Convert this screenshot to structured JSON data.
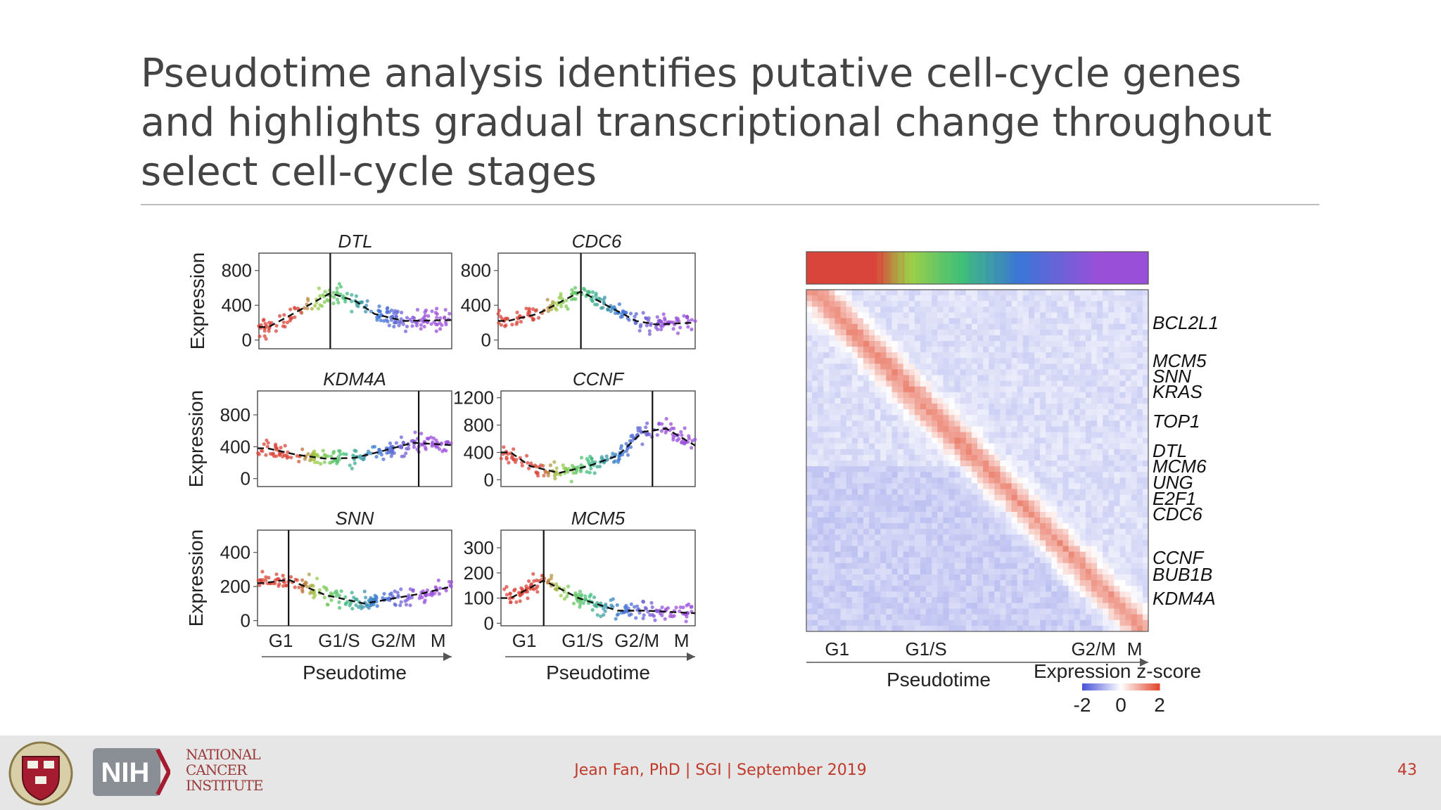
{
  "slide": {
    "title": "Pseudotime analysis identifies putative cell-cycle genes and highlights gradual transcriptional change throughout select cell-cycle stages",
    "footer_credit": "Jean Fan, PhD | SGI | September 2019",
    "page_number": "43",
    "logos": {
      "harvard": "harvard-shield-logo",
      "nih": "NIH",
      "nci": [
        "NATIONAL",
        "CANCER",
        "INSTITUTE"
      ]
    }
  },
  "colors": {
    "G1": "#d9453a",
    "G1/S": "#9ccf48",
    "S": "#3fbf7a",
    "S/G2": "#3b76d6",
    "G2/M": "#9a4fd9",
    "zscore_low": "#4a55d8",
    "zscore_mid": "#ffffff",
    "zscore_high": "#e2492f",
    "footer_text": "#c0392b"
  },
  "chart_data": [
    {
      "type": "scatter",
      "title": "DTL",
      "ylabel": "Expression",
      "yticks": [
        "800",
        "400",
        "0"
      ],
      "ylim": [
        -100,
        1000
      ],
      "xlim": [
        0,
        1
      ],
      "stage_marker": 0.37,
      "trend": {
        "x": [
          0.05,
          0.2,
          0.37,
          0.5,
          0.6,
          0.75,
          1.0
        ],
        "y": [
          150,
          330,
          540,
          450,
          300,
          220,
          230
        ]
      }
    },
    {
      "type": "scatter",
      "title": "CDC6",
      "ylabel": "",
      "yticks": [
        "800",
        "400",
        "0"
      ],
      "ylim": [
        -100,
        1000
      ],
      "xlim": [
        0,
        1
      ],
      "stage_marker": 0.42,
      "trend": {
        "x": [
          0.05,
          0.2,
          0.42,
          0.55,
          0.7,
          0.8,
          1.0
        ],
        "y": [
          220,
          300,
          560,
          400,
          220,
          180,
          200
        ]
      }
    },
    {
      "type": "scatter",
      "title": "KDM4A",
      "ylabel": "Expression",
      "yticks": [
        "800",
        "400",
        "0"
      ],
      "ylim": [
        -100,
        1100
      ],
      "xlim": [
        0,
        1
      ],
      "stage_marker": 0.83,
      "trend": {
        "x": [
          0.05,
          0.2,
          0.35,
          0.5,
          0.65,
          0.8,
          1.0
        ],
        "y": [
          380,
          300,
          250,
          260,
          350,
          450,
          420
        ]
      }
    },
    {
      "type": "scatter",
      "title": "CCNF",
      "ylabel": "",
      "yticks": [
        "1200",
        "800",
        "400",
        "0"
      ],
      "ylim": [
        -100,
        1300
      ],
      "xlim": [
        0,
        1
      ],
      "stage_marker": 0.78,
      "trend": {
        "x": [
          0.05,
          0.15,
          0.3,
          0.45,
          0.6,
          0.73,
          0.85,
          1.0
        ],
        "y": [
          400,
          200,
          100,
          200,
          350,
          700,
          750,
          500
        ]
      }
    },
    {
      "type": "scatter",
      "title": "SNN",
      "ylabel": "Expression",
      "yticks": [
        "400",
        "200",
        "0"
      ],
      "ylim": [
        -30,
        530
      ],
      "xlim": [
        0,
        1
      ],
      "stage_marker": 0.16,
      "trend": {
        "x": [
          0.03,
          0.16,
          0.35,
          0.55,
          0.7,
          0.85,
          1.0
        ],
        "y": [
          220,
          240,
          150,
          100,
          130,
          160,
          200
        ]
      }
    },
    {
      "type": "scatter",
      "title": "MCM5",
      "ylabel": "",
      "yticks": [
        "300",
        "200",
        "100",
        "0"
      ],
      "ylim": [
        -10,
        370
      ],
      "xlim": [
        0,
        1
      ],
      "stage_marker": 0.22,
      "trend": {
        "x": [
          0.05,
          0.22,
          0.4,
          0.6,
          0.75,
          1.0
        ],
        "y": [
          100,
          170,
          100,
          50,
          50,
          40
        ]
      }
    },
    {
      "type": "heatmap",
      "stage_labels": [
        "G1",
        "G1/S",
        "G2/M",
        "M"
      ],
      "gene_labels": [
        "BCL2L1",
        "MCM5",
        "SNN",
        "KRAS",
        "TOP1",
        "DTL",
        "MCM6",
        "UNG",
        "E2F1",
        "CDC6",
        "CCNF",
        "BUB1B",
        "KDM4A"
      ],
      "xlabel": "Pseudotime",
      "colorbar": {
        "title": "Expression z-score",
        "ticks": [
          "-2",
          "0",
          "2"
        ],
        "range": [
          -2,
          2
        ]
      }
    }
  ],
  "scatter_axis": {
    "stage_labels": [
      "G1",
      "G1/S",
      "G2/M",
      "M"
    ],
    "xlabel": "Pseudotime"
  }
}
